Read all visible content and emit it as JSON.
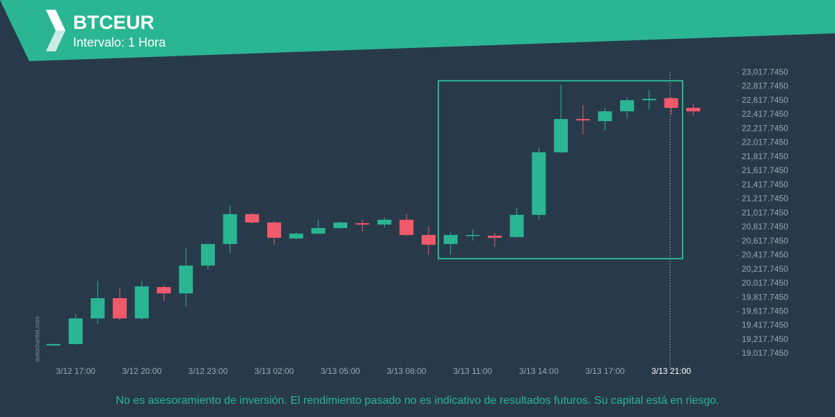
{
  "chart_data": {
    "type": "candlestick",
    "title": "BTCEUR",
    "subtitle": "Intervalo: 1 Hora",
    "watermark": "autochartist.com",
    "disclaimer": "No es asesoramiento de inversión. El rendimiento pasado no es indicativo de resultados futuros. Su capital está en riesgo.",
    "categories": [
      null,
      "3/12 17:00",
      null,
      null,
      "3/12 20:00",
      null,
      null,
      "3/12 23:00",
      null,
      null,
      "3/13 02:00",
      null,
      null,
      "3/13 05:00",
      null,
      null,
      "3/13 08:00",
      null,
      null,
      "3/13 11:00",
      null,
      null,
      "3/13 14:00",
      null,
      null,
      "3/13 17:00",
      null,
      null,
      "3/13 21:00",
      null
    ],
    "open": [
      19136,
      19156,
      19521,
      19808,
      19521,
      19966,
      19877,
      20272,
      20578,
      21003,
      20884,
      20657,
      20726,
      20805,
      20874,
      20855,
      20924,
      20707,
      20578,
      20697,
      20697,
      20677,
      20993,
      21882,
      22356,
      22326,
      22465,
      22623,
      22652,
      22514
    ],
    "high": [
      19166,
      19580,
      20055,
      19946,
      20055,
      19986,
      20529,
      20588,
      21121,
      21022,
      20904,
      20746,
      20924,
      20894,
      20924,
      20953,
      21003,
      20835,
      20756,
      20786,
      20736,
      21092,
      21951,
      22840,
      22554,
      22514,
      22662,
      22771,
      22662,
      22573
    ],
    "low": [
      19126,
      19146,
      19442,
      19492,
      19502,
      19768,
      19699,
      20213,
      20440,
      20864,
      20568,
      20647,
      20716,
      20795,
      20756,
      20815,
      20687,
      20430,
      20430,
      20628,
      20538,
      20667,
      20924,
      21872,
      22139,
      22198,
      22366,
      22494,
      22415,
      22405
    ],
    "close": [
      19156,
      19521,
      19808,
      19521,
      19976,
      19877,
      20272,
      20578,
      21003,
      20884,
      20667,
      20726,
      20805,
      20884,
      20855,
      20924,
      20707,
      20568,
      20707,
      20707,
      20667,
      20993,
      21882,
      22356,
      22336,
      22465,
      22623,
      22643,
      22514,
      22465
    ],
    "up_color": "#2ab593",
    "down_color": "#f25a6b",
    "pattern": {
      "high": 22900,
      "low": 20370,
      "color": "#2ab593"
    },
    "ylim": [
      18860,
      23060
    ],
    "yticks": [
      {
        "value": 19017.745,
        "label": "19,017.7450"
      },
      {
        "value": 19217.745,
        "label": "19,217.7450"
      },
      {
        "value": 19417.745,
        "label": "19,417.7450"
      },
      {
        "value": 19617.745,
        "label": "19,617.7450"
      },
      {
        "value": 19817.745,
        "label": "19,817.7450"
      },
      {
        "value": 20017.745,
        "label": "20,017.7450"
      },
      {
        "value": 20217.745,
        "label": "20,217.7450"
      },
      {
        "value": 20417.745,
        "label": "20,417.7450"
      },
      {
        "value": 20617.745,
        "label": "20,617.7450"
      },
      {
        "value": 20817.745,
        "label": "20,817.7450"
      },
      {
        "value": 21017.745,
        "label": "21,017.7450"
      },
      {
        "value": 21217.745,
        "label": "21,217.7450"
      },
      {
        "value": 21417.745,
        "label": "21,417.7450"
      },
      {
        "value": 21617.745,
        "label": "21,617.7450"
      },
      {
        "value": 21817.745,
        "label": "21,817.7450"
      },
      {
        "value": 22017.745,
        "label": "22,017.7450"
      },
      {
        "value": 22217.745,
        "label": "22,217.7450"
      },
      {
        "value": 22417.745,
        "label": "22,417.7450"
      },
      {
        "value": 22617.745,
        "label": "22,617.7450"
      },
      {
        "value": 22817.745,
        "label": "22,817.7450"
      },
      {
        "value": 23017.745,
        "label": "23,017.7450"
      }
    ]
  }
}
